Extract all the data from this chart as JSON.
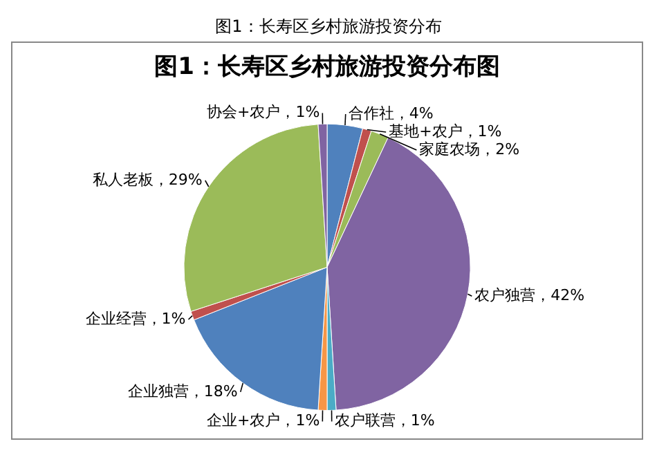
{
  "chart_data": {
    "type": "pie",
    "title": "图1：长寿区乡村旅游投资分布图",
    "annotations": [
      "图1：长寿区乡村旅游投资分布"
    ],
    "categories": [
      "合作社",
      "基地+农户",
      "家庭农场",
      "农户独营",
      "农户联营",
      "企业+农户",
      "企业独营",
      "企业经营",
      "私人老板",
      "协会+农户"
    ],
    "values": [
      4,
      1,
      2,
      42,
      1,
      1,
      18,
      1,
      29,
      1
    ],
    "value_labels": [
      "4%",
      "1%",
      "2%",
      "42%",
      "1%",
      "1%",
      "18%",
      "1%",
      "29%",
      "1%"
    ],
    "colors": [
      "#4f81bd",
      "#c0504d",
      "#9bbb59",
      "#8064a2",
      "#4bacc6",
      "#f79646",
      "#4f81bd",
      "#c0504d",
      "#9bbb59",
      "#8064a2"
    ],
    "legend": false
  }
}
